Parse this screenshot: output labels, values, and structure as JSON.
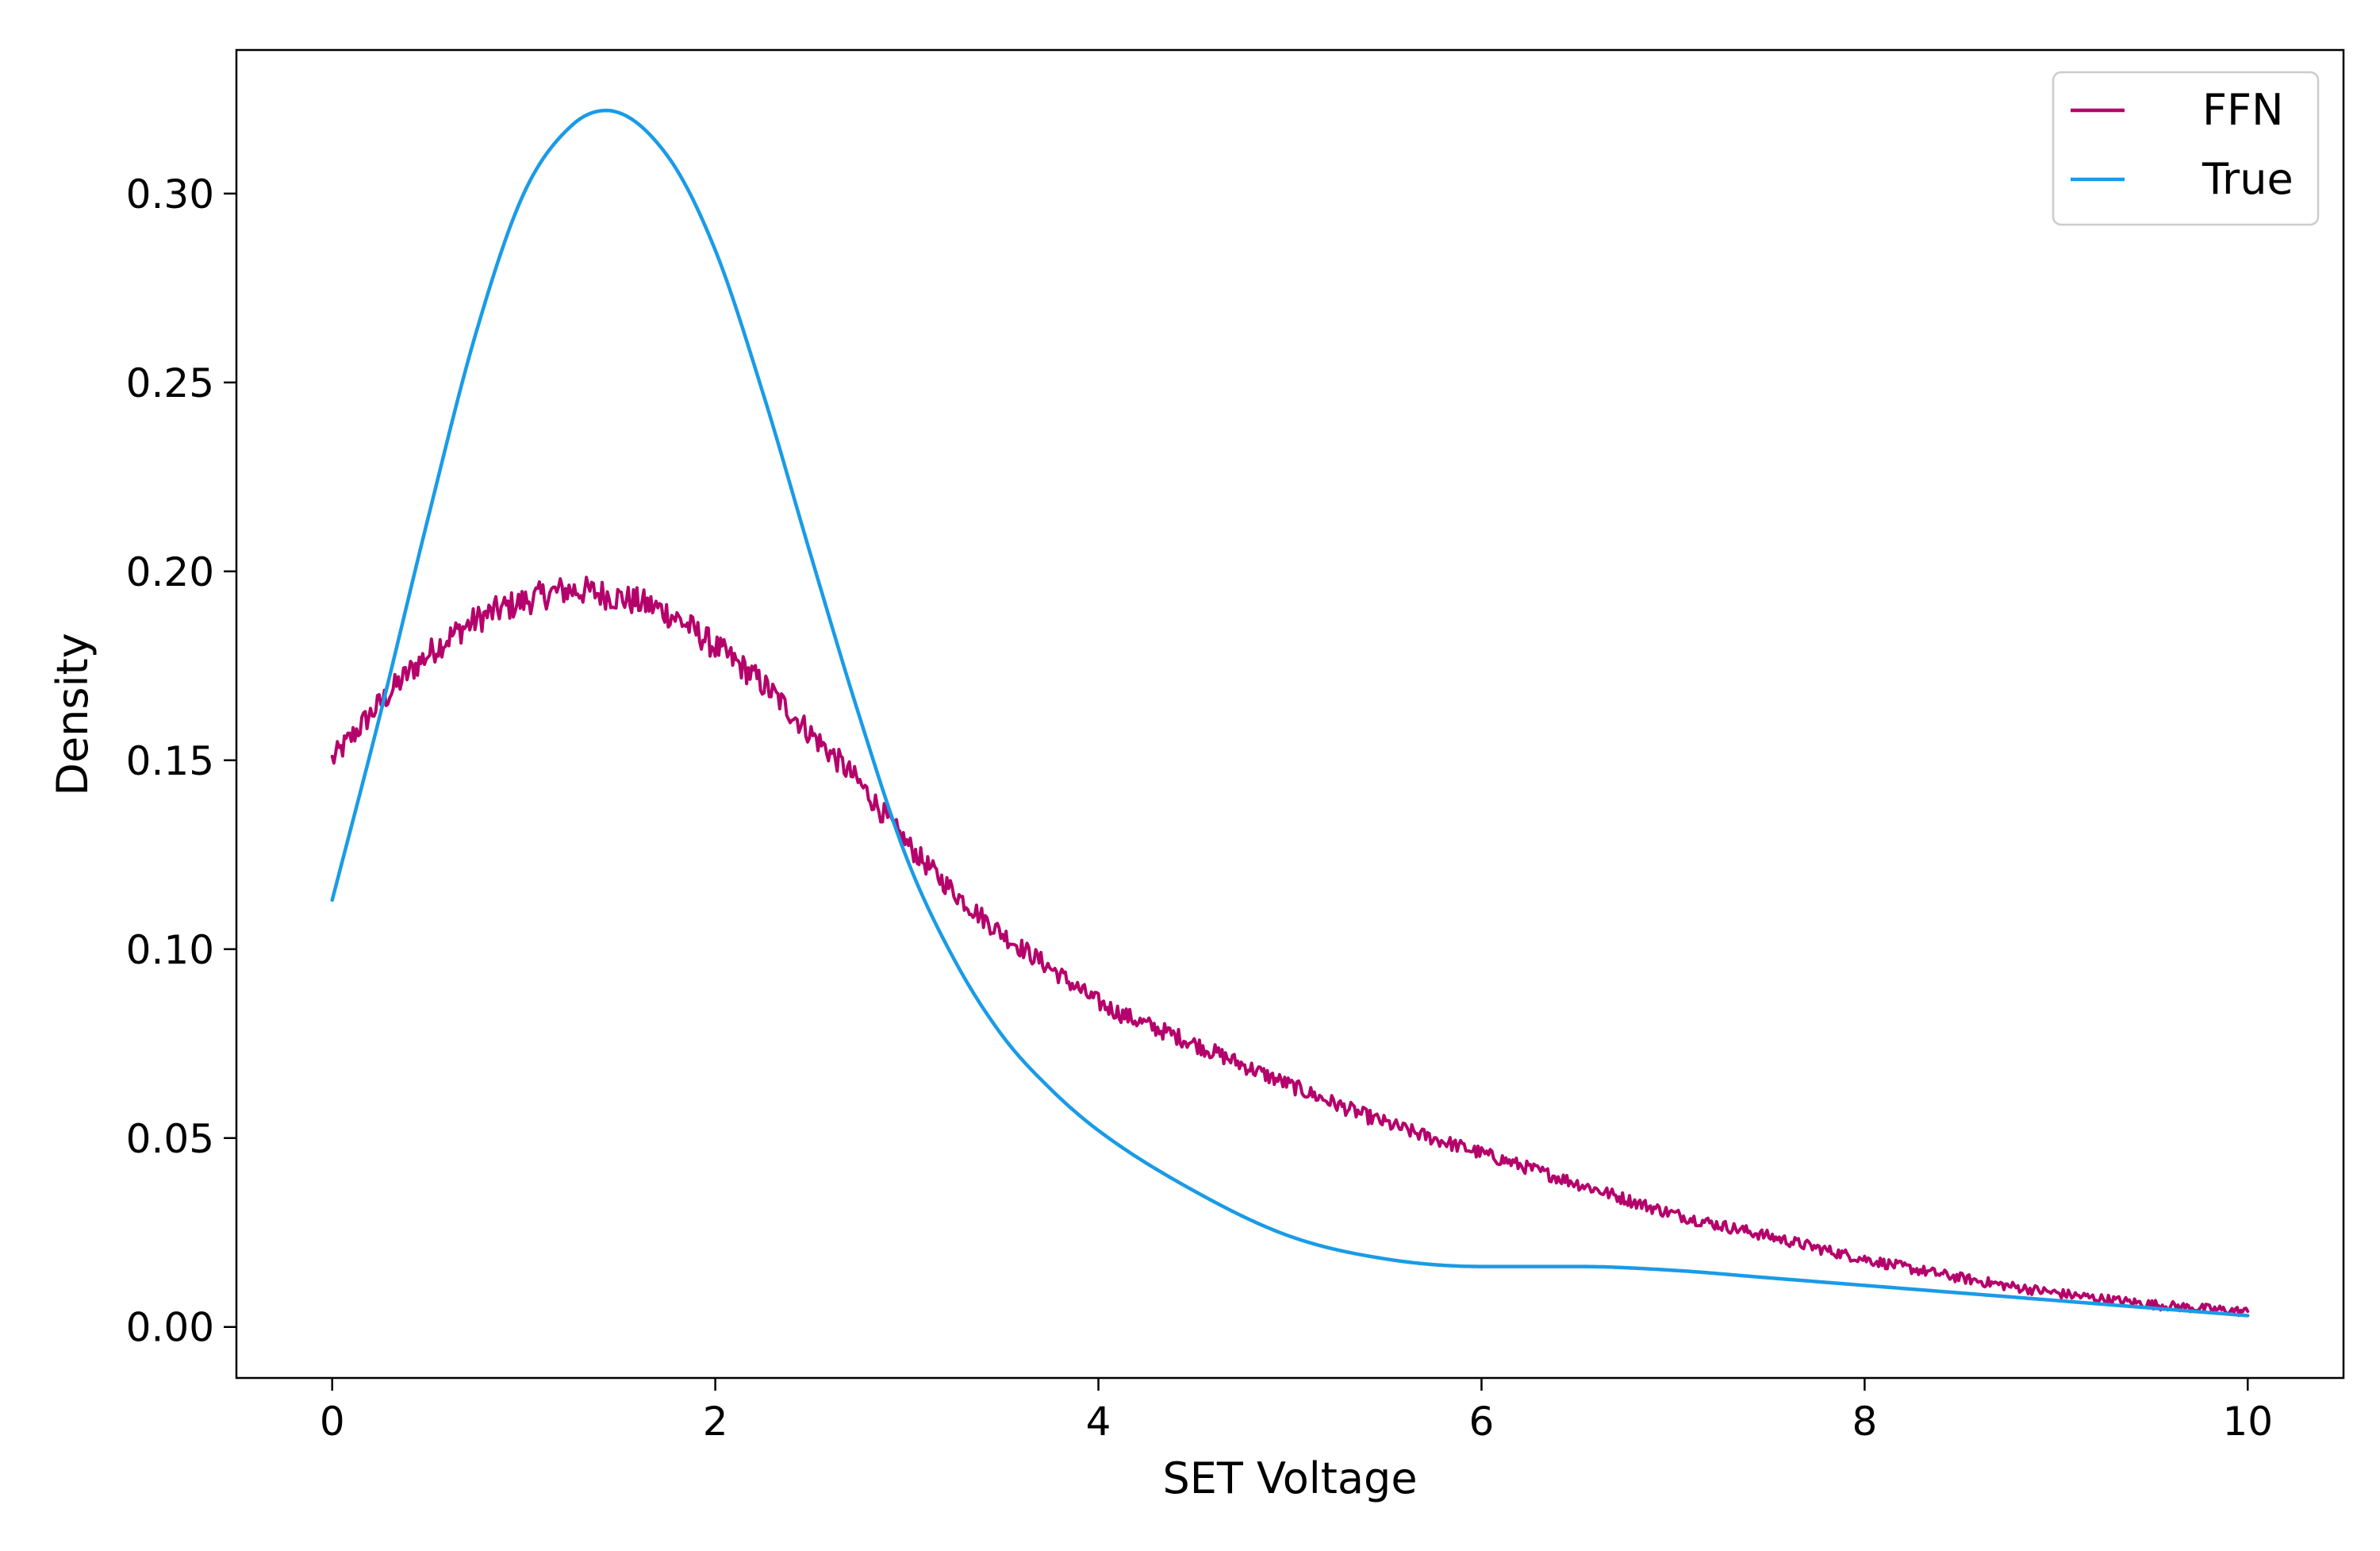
{
  "chart_data": {
    "type": "line",
    "title": "",
    "xlabel": "SET Voltage",
    "ylabel": "Density",
    "xlim": [
      -0.5,
      10.5
    ],
    "ylim": [
      -0.0135,
      0.338
    ],
    "xticks": [
      0,
      2,
      4,
      6,
      8,
      10
    ],
    "xtick_labels": [
      "0",
      "2",
      "4",
      "6",
      "8",
      "10"
    ],
    "yticks": [
      0.0,
      0.05,
      0.1,
      0.15,
      0.2,
      0.25,
      0.3
    ],
    "ytick_labels": [
      "0.00",
      "0.05",
      "0.10",
      "0.15",
      "0.20",
      "0.25",
      "0.30"
    ],
    "grid": false,
    "legend": {
      "position": "top-right",
      "entries": [
        "FFN",
        "True"
      ]
    },
    "series": [
      {
        "name": "FFN",
        "color": "#b5006b",
        "noisy": true,
        "x": [
          0.0,
          0.25,
          0.5,
          0.75,
          1.0,
          1.25,
          1.5,
          1.75,
          2.0,
          2.25,
          2.5,
          2.75,
          3.0,
          3.25,
          3.5,
          3.75,
          4.0,
          4.5,
          5.0,
          5.5,
          6.0,
          6.5,
          7.0,
          7.5,
          8.0,
          8.5,
          9.0,
          9.5,
          10.0
        ],
        "y": [
          0.15,
          0.165,
          0.178,
          0.187,
          0.192,
          0.195,
          0.193,
          0.189,
          0.18,
          0.17,
          0.157,
          0.144,
          0.128,
          0.115,
          0.104,
          0.095,
          0.086,
          0.075,
          0.064,
          0.054,
          0.046,
          0.038,
          0.03,
          0.024,
          0.018,
          0.013,
          0.009,
          0.006,
          0.004
        ]
      },
      {
        "name": "True",
        "color": "#1a9be6",
        "noisy": false,
        "x": [
          0.0,
          0.25,
          0.5,
          0.75,
          1.0,
          1.25,
          1.43,
          1.75,
          2.0,
          2.25,
          2.5,
          2.75,
          3.0,
          3.25,
          3.5,
          3.75,
          4.0,
          4.5,
          5.0,
          5.5,
          6.0,
          6.5,
          7.0,
          7.5,
          8.0,
          8.5,
          9.0,
          9.5,
          10.0
        ],
        "y": [
          0.113,
          0.162,
          0.214,
          0.263,
          0.3,
          0.318,
          0.322,
          0.31,
          0.285,
          0.247,
          0.204,
          0.162,
          0.124,
          0.097,
          0.077,
          0.063,
          0.052,
          0.036,
          0.024,
          0.018,
          0.016,
          0.016,
          0.015,
          0.013,
          0.011,
          0.009,
          0.007,
          0.005,
          0.003
        ]
      }
    ]
  }
}
